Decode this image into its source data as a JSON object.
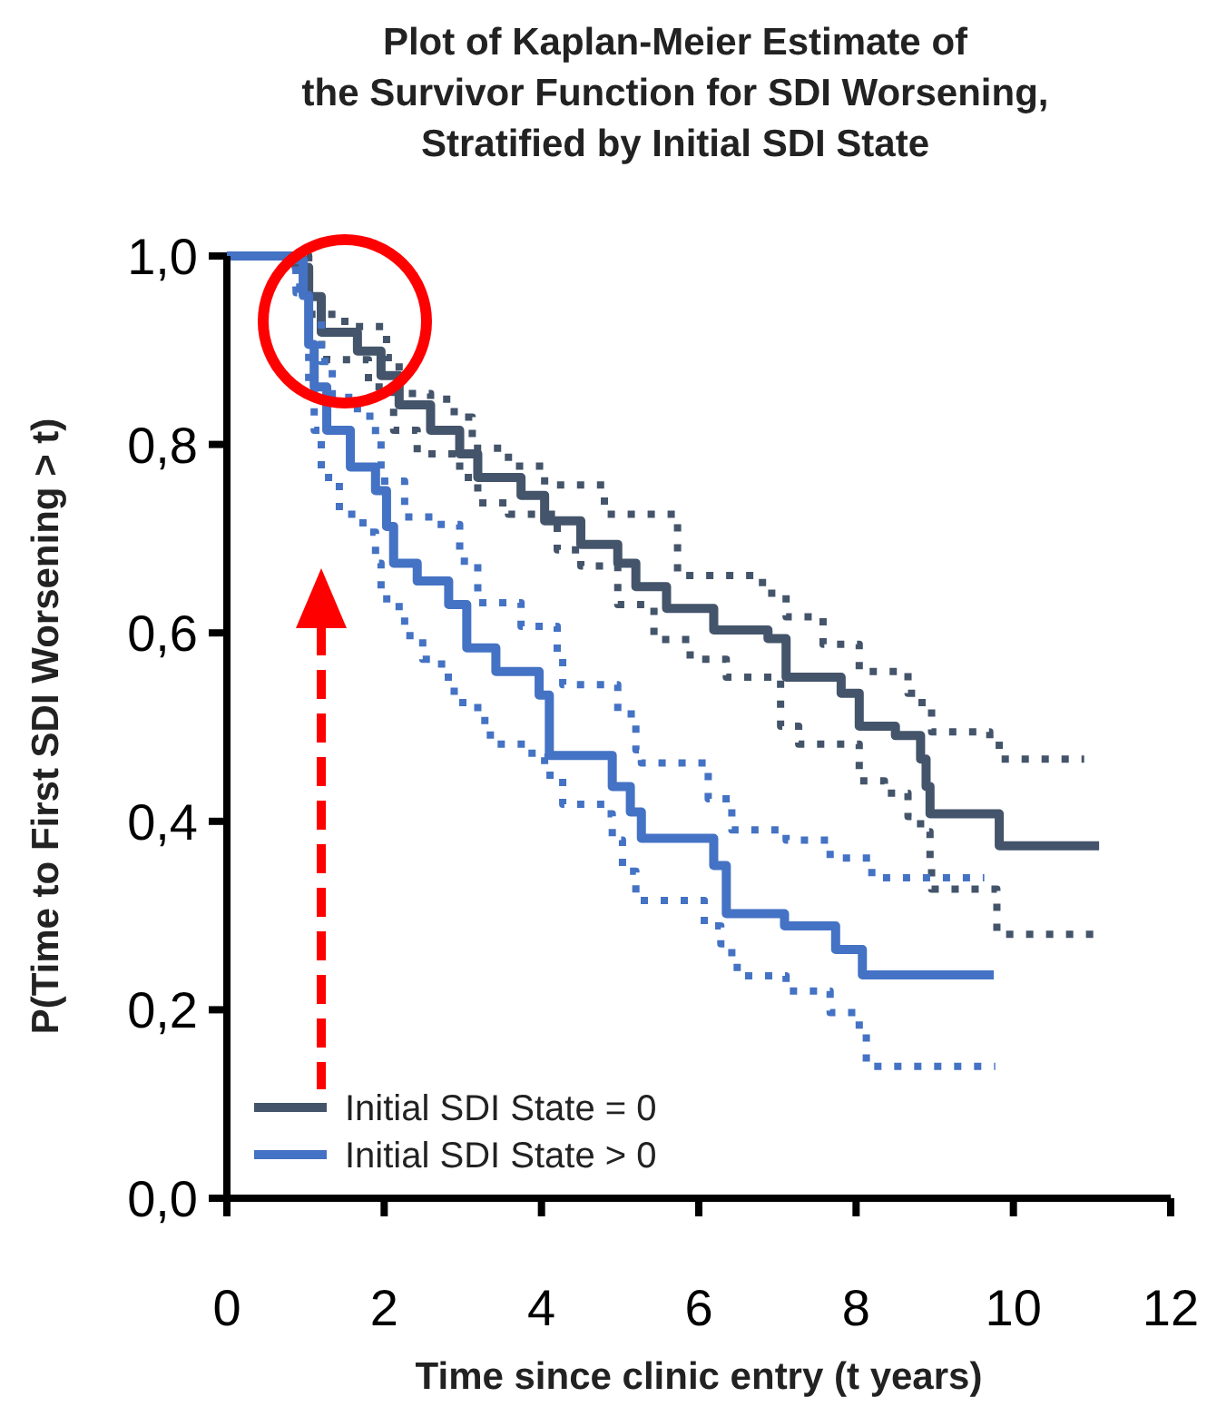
{
  "chart_data": {
    "type": "step",
    "title": "Plot of Kaplan-Meier Estimate of\nthe Survivor Function for SDI Worsening,\nStratified by Initial SDI State",
    "xlabel": "Time since clinic entry (t years)",
    "ylabel": "P(Time to First SDI Worsening > t)",
    "xlim": [
      0,
      12
    ],
    "xticks": [
      0,
      2,
      4,
      6,
      8,
      10,
      12
    ],
    "ylim": [
      0,
      1
    ],
    "yticks": [
      {
        "value": 0,
        "label": "0,0"
      },
      {
        "value": 0.2,
        "label": "0,2"
      },
      {
        "value": 0.4,
        "label": "0,4"
      },
      {
        "value": 0.6,
        "label": "0,6"
      },
      {
        "value": 0.8,
        "label": "0,8"
      },
      {
        "value": 1,
        "label": "1,0"
      }
    ],
    "grid": false,
    "legend": "bottom left",
    "marker": "none",
    "series": [
      {
        "name": "Initial SDI State = 0",
        "color": "#44546a",
        "line_style": "solid",
        "x": [
          0,
          0.88,
          1.04,
          1.2,
          1.66,
          1.96,
          2.19,
          2.59,
          2.96,
          3.19,
          3.74,
          4.04,
          4.5,
          4.97,
          5.2,
          5.59,
          6.19,
          6.88,
          7.11,
          7.81,
          8.04,
          8.5,
          8.82,
          8.89,
          8.94,
          9.82,
          11.09
        ],
        "values": [
          1,
          0.988,
          0.957,
          0.919,
          0.899,
          0.873,
          0.842,
          0.815,
          0.79,
          0.765,
          0.746,
          0.719,
          0.694,
          0.674,
          0.649,
          0.626,
          0.603,
          0.594,
          0.553,
          0.536,
          0.501,
          0.491,
          0.466,
          0.437,
          0.408,
          0.374,
          0.374
        ]
      },
      {
        "color": "#44546a",
        "line_style": "dotted",
        "x": [
          0,
          1.04,
          1.5,
          2.03,
          2.19,
          2.59,
          2.89,
          3.12,
          3.58,
          4.04,
          4.8,
          5.73,
          6.81,
          7.11,
          7.58,
          8.04,
          8.66,
          8.78,
          8.96,
          9.7,
          9.82,
          10.9
        ],
        "values": [
          1,
          0.938,
          0.925,
          0.892,
          0.854,
          0.848,
          0.829,
          0.796,
          0.777,
          0.757,
          0.726,
          0.661,
          0.642,
          0.617,
          0.588,
          0.559,
          0.536,
          0.526,
          0.495,
          0.486,
          0.466,
          0.466
        ]
      },
      {
        "color": "#44546a",
        "line_style": "dotted",
        "x": [
          0,
          1.04,
          1.27,
          1.8,
          2.12,
          2.42,
          2.96,
          3.19,
          3.58,
          4.2,
          4.5,
          4.97,
          5.43,
          5.89,
          6.35,
          7.04,
          7.27,
          8.04,
          8.36,
          8.66,
          8.82,
          8.94,
          8.96,
          9.79,
          11.09
        ],
        "values": [
          1,
          0.906,
          0.89,
          0.861,
          0.815,
          0.79,
          0.765,
          0.738,
          0.726,
          0.688,
          0.671,
          0.63,
          0.593,
          0.572,
          0.553,
          0.501,
          0.482,
          0.443,
          0.43,
          0.405,
          0.389,
          0.353,
          0.328,
          0.28,
          0.28
        ]
      },
      {
        "name": "Initial SDI State > 0",
        "color": "#4472c4",
        "line_style": "solid",
        "x": [
          0,
          0.81,
          0.97,
          1.04,
          1.11,
          1.27,
          1.57,
          1.89,
          2.03,
          2.12,
          2.42,
          2.82,
          3.05,
          3.42,
          3.97,
          4.1,
          4.9,
          5.13,
          5.27,
          6.19,
          6.35,
          7.09,
          7.74,
          8.08,
          9.75
        ],
        "values": [
          1,
          0.996,
          0.958,
          0.906,
          0.861,
          0.815,
          0.776,
          0.751,
          0.713,
          0.674,
          0.655,
          0.63,
          0.584,
          0.559,
          0.534,
          0.47,
          0.437,
          0.41,
          0.382,
          0.353,
          0.302,
          0.289,
          0.264,
          0.237,
          0.237
        ]
      },
      {
        "color": "#4472c4",
        "line_style": "dotted",
        "x": [
          0,
          0.88,
          1.04,
          1.2,
          1.34,
          1.66,
          1.89,
          1.96,
          2.26,
          2.66,
          2.96,
          3.19,
          3.74,
          4.2,
          4.27,
          4.97,
          5.2,
          5.27,
          6.12,
          6.42,
          7.11,
          7.67,
          8.2,
          9.63
        ],
        "values": [
          1,
          0.967,
          0.934,
          0.888,
          0.85,
          0.83,
          0.805,
          0.761,
          0.723,
          0.715,
          0.676,
          0.632,
          0.607,
          0.578,
          0.545,
          0.514,
          0.476,
          0.462,
          0.424,
          0.391,
          0.38,
          0.361,
          0.34,
          0.34
        ]
      },
      {
        "color": "#4472c4",
        "line_style": "dotted",
        "x": [
          0,
          0.88,
          1.04,
          1.11,
          1.2,
          1.43,
          1.73,
          1.89,
          1.96,
          2.19,
          2.26,
          2.49,
          2.73,
          2.89,
          3.19,
          3.35,
          3.88,
          4.04,
          4.27,
          4.8,
          4.9,
          5.03,
          5.2,
          6.07,
          6.28,
          6.42,
          6.58,
          7.11,
          7.67,
          8.04,
          8.13,
          9.77
        ],
        "values": [
          1,
          0.961,
          0.861,
          0.815,
          0.765,
          0.726,
          0.707,
          0.674,
          0.636,
          0.622,
          0.597,
          0.572,
          0.553,
          0.526,
          0.507,
          0.482,
          0.468,
          0.449,
          0.418,
          0.408,
          0.38,
          0.347,
          0.316,
          0.289,
          0.27,
          0.245,
          0.236,
          0.22,
          0.197,
          0.176,
          0.14,
          0.14
        ]
      }
    ]
  }
}
